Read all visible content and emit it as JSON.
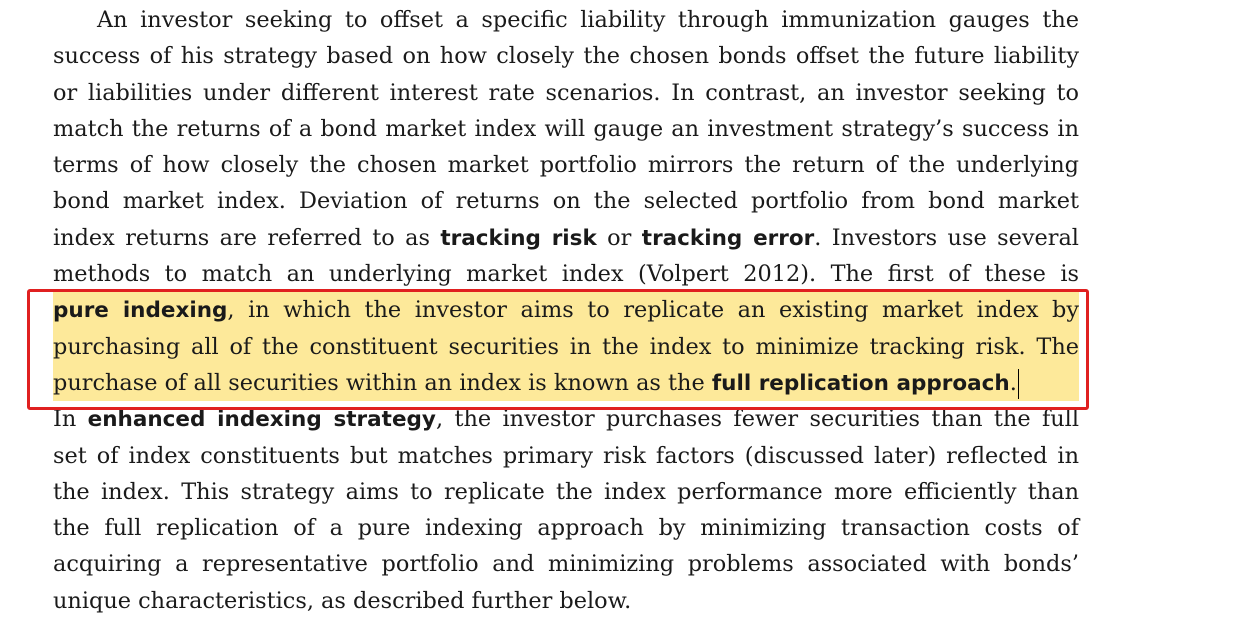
{
  "lines": [
    {
      "text": "An investor seeking to offset a specific liability through immunization gauges the"
    },
    {
      "text": "success of his strategy based on how closely the chosen bonds offset the future liability"
    },
    {
      "text": "or liabilities under different interest rate scenarios. In contrast, an investor seeking to"
    },
    {
      "text": "match the returns of a bond market index will gauge an investment strategy’s success in"
    },
    {
      "text": "terms of how closely the chosen market portfolio mirrors the return of the underlying"
    },
    {
      "text": "bond market index. Deviation of returns on the selected portfolio from bond market"
    },
    {
      "a": "index returns are referred to as ",
      "b1": "tracking risk",
      "c": " or ",
      "b2": "tracking error",
      "d": ". Investors use several"
    },
    {
      "text": "methods to match an underlying market index (Volpert 2012). The first of these is"
    },
    {
      "b1": "pure indexing",
      "c": ", in which the investor aims to replicate an existing market index by"
    },
    {
      "text": "purchasing all of the constituent securities in the index to minimize tracking risk. The"
    },
    {
      "a": "purchase of all securities within an index is known as the ",
      "b1": "full replication approach",
      "d": "."
    },
    {
      "a": "In ",
      "b1": "enhanced indexing strategy",
      "c": ", the investor purchases fewer securities than the full"
    },
    {
      "text": "set of index constituents but matches primary risk factors (discussed later) reflected in"
    },
    {
      "text": "the index. This strategy aims to replicate the index performance more efficiently than"
    },
    {
      "text": "the full replication of a pure indexing approach by minimizing transaction costs of"
    },
    {
      "text": "acquiring a representative portfolio and minimizing problems associated with bonds’"
    },
    {
      "text": "unique characteristics, as described further below."
    }
  ],
  "colors": {
    "highlight": "#fde99a",
    "annotation_box": "#e02020",
    "text": "#1a1a1a"
  }
}
